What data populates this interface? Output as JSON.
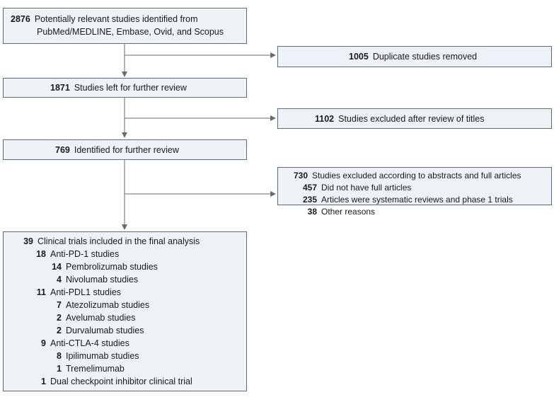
{
  "colors": {
    "box_fill": "#eef2f6",
    "box_border": "#5f6b75",
    "line": "#6b6b6b"
  },
  "boxes": {
    "identified": {
      "n": "2876",
      "line1": "Potentially relevant studies identified from",
      "line2": "PubMed/MEDLINE, Embase, Ovid, and Scopus"
    },
    "duplicates": {
      "n": "1005",
      "text": "Duplicate studies removed"
    },
    "left_for_review": {
      "n": "1871",
      "text": "Studies left for further review"
    },
    "excluded_titles": {
      "n": "1102",
      "text": "Studies excluded after review of titles"
    },
    "further_review": {
      "n": "769",
      "text": "Identified for further review"
    },
    "excluded_abstracts": {
      "n": "730",
      "text": "Studies excluded according to abstracts and full articles",
      "items": [
        {
          "n": "457",
          "text": "Did not have full articles"
        },
        {
          "n": "235",
          "text": "Articles were systematic reviews and phase 1 trials"
        },
        {
          "n": "38",
          "text": "Other reasons"
        }
      ]
    },
    "final": {
      "n": "39",
      "text": "Clinical trials included in the final analysis",
      "groups": [
        {
          "n": "18",
          "text": "Anti-PD-1 studies",
          "items": [
            {
              "n": "14",
              "text": "Pembrolizumab studies"
            },
            {
              "n": "4",
              "text": "Nivolumab studies"
            }
          ]
        },
        {
          "n": "11",
          "text": "Anti-PDL1 studies",
          "items": [
            {
              "n": "7",
              "text": "Atezolizumab studies"
            },
            {
              "n": "2",
              "text": "Avelumab studies"
            },
            {
              "n": "2",
              "text": "Durvalumab studies"
            }
          ]
        },
        {
          "n": "9",
          "text": "Anti-CTLA-4 studies",
          "items": [
            {
              "n": "8",
              "text": "Ipilimumab studies"
            },
            {
              "n": "1",
              "text": "Tremelimumab"
            }
          ]
        },
        {
          "n": "1",
          "text": "Dual checkpoint inhibitor clinical trial",
          "items": []
        }
      ]
    }
  }
}
